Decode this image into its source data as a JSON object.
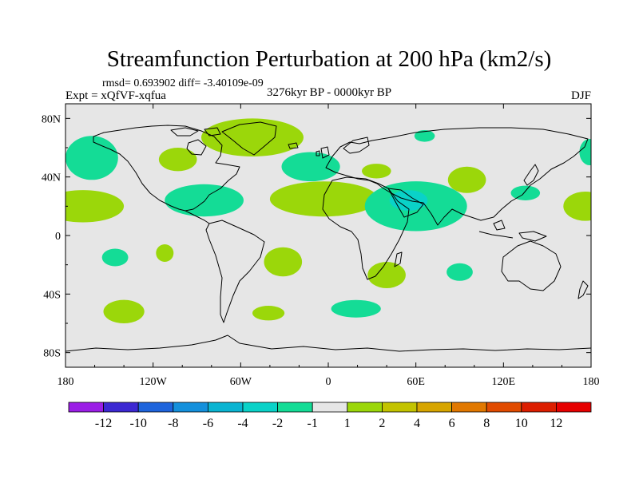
{
  "chart_data": {
    "type": "heatmap",
    "title": "Streamfunction Perturbation at 200 hPa (km2/s)",
    "stats_text": "rmsd= 0.693902 diff= -3.40109e-09",
    "left_label": "Expt = xQfVF-xqfua",
    "center_label": "3276kyr BP - 0000kyr BP",
    "right_label": "DJF",
    "x_ticks": [
      {
        "value": -180,
        "label": "180"
      },
      {
        "value": -120,
        "label": "120W"
      },
      {
        "value": -60,
        "label": "60W"
      },
      {
        "value": 0,
        "label": "0"
      },
      {
        "value": 60,
        "label": "60E"
      },
      {
        "value": 120,
        "label": "120E"
      },
      {
        "value": 180,
        "label": "180"
      }
    ],
    "y_ticks": [
      {
        "value": 80,
        "label": "80N"
      },
      {
        "value": 40,
        "label": "40N"
      },
      {
        "value": 0,
        "label": "0"
      },
      {
        "value": -40,
        "label": "40S"
      },
      {
        "value": -80,
        "label": "80S"
      }
    ],
    "xlim": [
      -180,
      180
    ],
    "ylim": [
      -90,
      90
    ],
    "background_color": "#e6e6e6",
    "colorbar": {
      "labels": [
        "-12",
        "-10",
        "-8",
        "-6",
        "-4",
        "-2",
        "-1",
        "1",
        "2",
        "4",
        "6",
        "8",
        "10",
        "12"
      ],
      "colors": [
        "#9b1ee6",
        "#3c28d2",
        "#1e64dc",
        "#1490dc",
        "#0ab4d2",
        "#0ad2c8",
        "#14dc96",
        "#e6e6e6",
        "#9bd70a",
        "#c3c300",
        "#d7a500",
        "#e17800",
        "#e14b00",
        "#dc1e00",
        "#e60000"
      ]
    },
    "regions": [
      {
        "lon": -162,
        "lat": 53,
        "rlon": 18,
        "rlat": 15,
        "level": "-1"
      },
      {
        "lon": -168,
        "lat": 20,
        "rlon": 28,
        "rlat": 11,
        "level": "1"
      },
      {
        "lon": -103,
        "lat": 52,
        "rlon": 13,
        "rlat": 8,
        "level": "1"
      },
      {
        "lon": -52,
        "lat": 67,
        "rlon": 35,
        "rlat": 13,
        "level": "1"
      },
      {
        "lon": -12,
        "lat": 47,
        "rlon": 20,
        "rlat": 10,
        "level": "-1"
      },
      {
        "lon": 33,
        "lat": 44,
        "rlon": 10,
        "rlat": 5,
        "level": "1"
      },
      {
        "lon": 66,
        "lat": 68,
        "rlon": 7,
        "rlat": 4,
        "level": "-1"
      },
      {
        "lon": 95,
        "lat": 38,
        "rlon": 13,
        "rlat": 9,
        "level": "1"
      },
      {
        "lon": -85,
        "lat": 24,
        "rlon": 27,
        "rlat": 11,
        "level": "-1"
      },
      {
        "lon": -3,
        "lat": 25,
        "rlon": 37,
        "rlat": 12,
        "level": "1"
      },
      {
        "lon": 60,
        "lat": 20,
        "rlon": 35,
        "rlat": 17,
        "level": "-1"
      },
      {
        "lon": 55,
        "lat": 24,
        "rlon": 13,
        "rlat": 7,
        "level": "-2"
      },
      {
        "lon": 135,
        "lat": 29,
        "rlon": 10,
        "rlat": 5,
        "level": "-1"
      },
      {
        "lon": 176,
        "lat": 20,
        "rlon": 15,
        "rlat": 10,
        "level": "1"
      },
      {
        "lon": 179,
        "lat": 57,
        "rlon": 7,
        "rlat": 9,
        "level": "-1"
      },
      {
        "lon": -146,
        "lat": -15,
        "rlon": 9,
        "rlat": 6,
        "level": "-1"
      },
      {
        "lon": -112,
        "lat": -12,
        "rlon": 6,
        "rlat": 6,
        "level": "1"
      },
      {
        "lon": -31,
        "lat": -18,
        "rlon": 13,
        "rlat": 10,
        "level": "1"
      },
      {
        "lon": 40,
        "lat": -27,
        "rlon": 13,
        "rlat": 9,
        "level": "1"
      },
      {
        "lon": 90,
        "lat": -25,
        "rlon": 9,
        "rlat": 6,
        "level": "-1"
      },
      {
        "lon": -140,
        "lat": -52,
        "rlon": 14,
        "rlat": 8,
        "level": "1"
      },
      {
        "lon": -41,
        "lat": -53,
        "rlon": 11,
        "rlat": 5,
        "level": "1"
      },
      {
        "lon": 19,
        "lat": -50,
        "rlon": 17,
        "rlat": 6,
        "level": "-1"
      }
    ]
  }
}
